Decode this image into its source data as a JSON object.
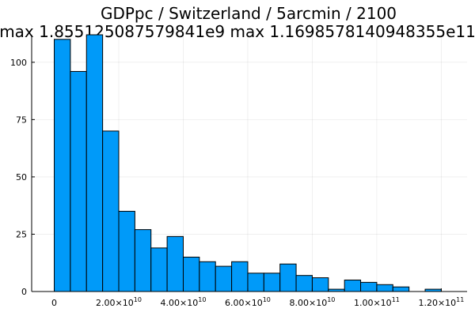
{
  "chart_data": {
    "type": "bar",
    "title": "GDPpc / Switzerland / 5arcmin / 2100",
    "subtitle": "max 1.855125087579841e9  max 1.1698578140948355e11",
    "bin_width": 5000000000,
    "bin_start": 0,
    "values": [
      110,
      96,
      112,
      70,
      35,
      27,
      19,
      24,
      15,
      13,
      11,
      13,
      8,
      8,
      12,
      7,
      6,
      1,
      5,
      4,
      3,
      2,
      0,
      1
    ],
    "xlim": [
      -7000000000,
      128000000000
    ],
    "ylim": [
      0,
      112
    ],
    "yticks": [
      0,
      25,
      50,
      75,
      100
    ],
    "xticks": [
      0,
      20000000000,
      40000000000,
      60000000000,
      80000000000,
      100000000000,
      120000000000
    ],
    "ytick_labels": [
      "0",
      "25",
      "50",
      "75",
      "100"
    ],
    "xtick_labels": [
      {
        "mantissa": "0",
        "exp": ""
      },
      {
        "mantissa": "2.00×10",
        "exp": "10"
      },
      {
        "mantissa": "4.00×10",
        "exp": "10"
      },
      {
        "mantissa": "6.00×10",
        "exp": "10"
      },
      {
        "mantissa": "8.00×10",
        "exp": "10"
      },
      {
        "mantissa": "1.00×10",
        "exp": "11"
      },
      {
        "mantissa": "1.20×10",
        "exp": "11"
      }
    ],
    "grid": true,
    "legend": "none",
    "bar_color": "#009AF9"
  }
}
